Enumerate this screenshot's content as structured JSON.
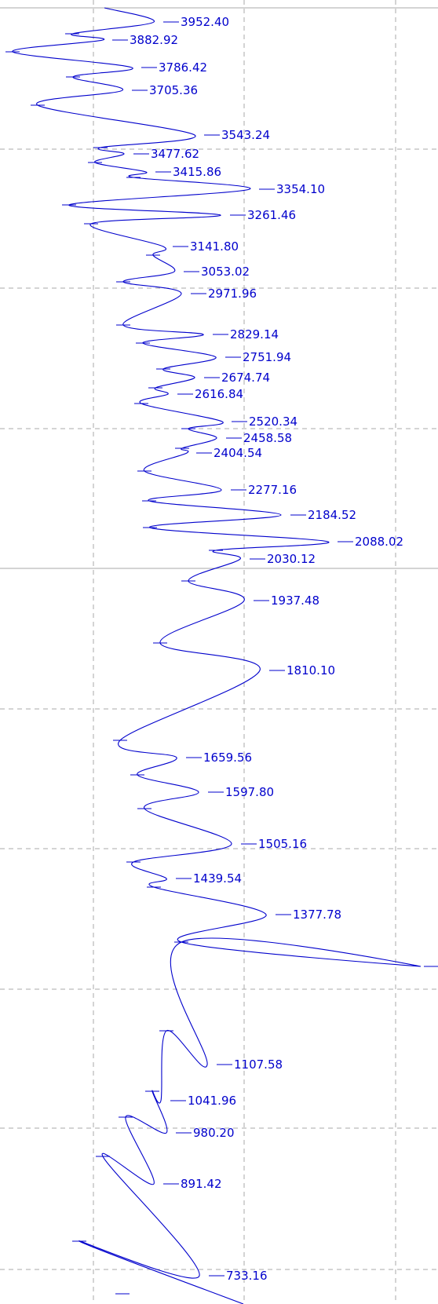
{
  "chart_data": {
    "type": "line",
    "title": "",
    "xlabel": "",
    "ylabel": "",
    "orientation": "vertical",
    "y_axis": "wavenumber (decreasing downward)",
    "grid": true,
    "colors": {
      "trace": "#0000cc",
      "label": "#0000cc",
      "grid": "#aaaaaa",
      "background": "#ffffff"
    },
    "peak_labels": [
      "3952.40",
      "3882.92",
      "3786.42",
      "3705.36",
      "3543.24",
      "3477.62",
      "3415.86",
      "3354.10",
      "3261.46",
      "3141.80",
      "3053.02",
      "2971.96",
      "2829.14",
      "2751.94",
      "2674.74",
      "2616.84",
      "2520.34",
      "2458.58",
      "2404.54",
      "2277.16",
      "2184.52",
      "2088.02",
      "2030.12",
      "1937.48",
      "1810.10",
      "1659.56",
      "1597.80",
      "1505.16",
      "1439.54",
      "1377.78",
      "1107.58",
      "1041.96",
      "980.20",
      "891.42",
      "733.16"
    ],
    "peak_values": [
      3952.4,
      3882.92,
      3786.42,
      3705.36,
      3543.24,
      3477.62,
      3415.86,
      3354.1,
      3261.46,
      3141.8,
      3053.02,
      2971.96,
      2829.14,
      2751.94,
      2674.74,
      2616.84,
      2520.34,
      2458.58,
      2404.54,
      2277.16,
      2184.52,
      2088.02,
      2030.12,
      1937.48,
      1810.1,
      1659.56,
      1597.8,
      1505.16,
      1439.54,
      1377.78,
      1107.58,
      1041.96,
      980.2,
      891.42,
      733.16
    ]
  }
}
